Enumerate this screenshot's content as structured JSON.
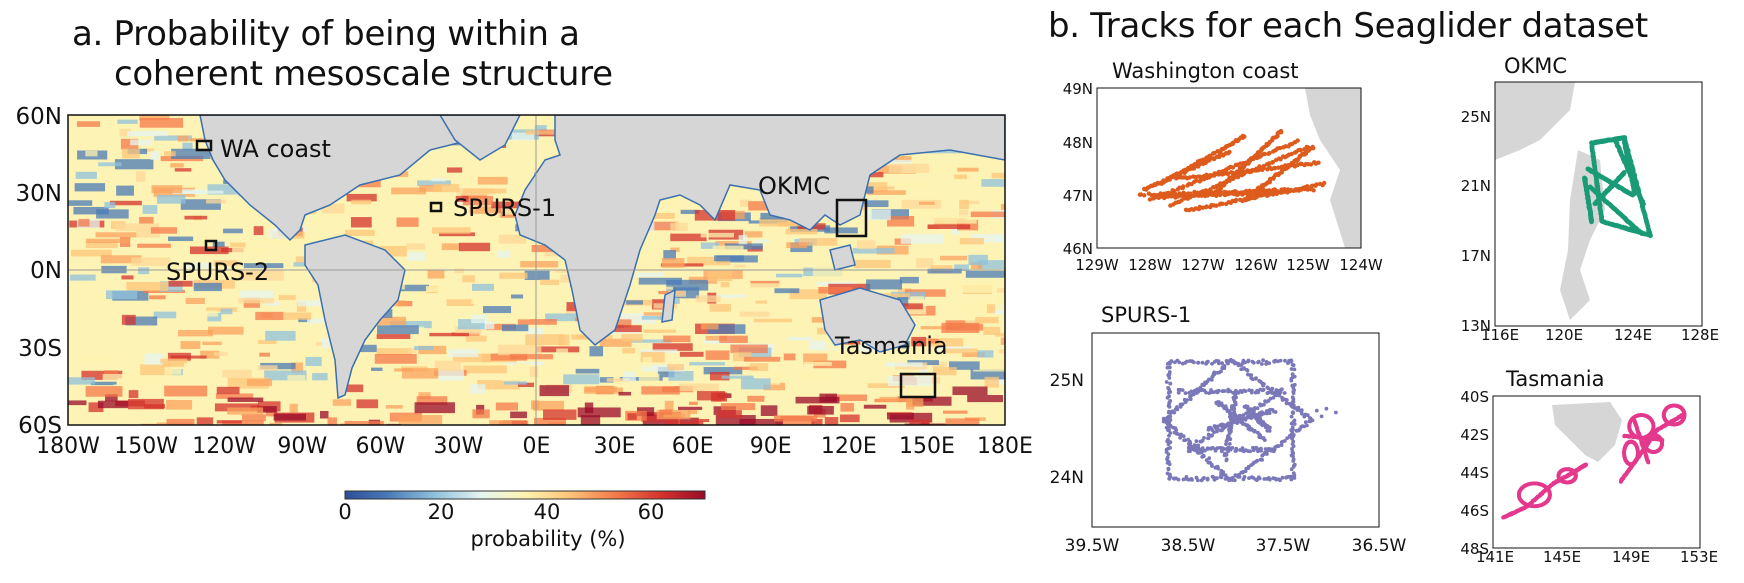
{
  "panel_a": {
    "title": "a. Probability of being within a\n    coherent mesoscale structure",
    "lat_ticks": [
      "60N",
      "30N",
      "0N",
      "30S",
      "60S"
    ],
    "lon_ticks": [
      "180W",
      "150W",
      "120W",
      "90W",
      "60W",
      "30W",
      "0E",
      "30E",
      "60E",
      "90E",
      "120E",
      "150E",
      "180E"
    ],
    "regions": [
      "WA coast",
      "SPURS-1",
      "SPURS-2",
      "OKMC",
      "Tasmania"
    ],
    "colorbar": {
      "ticks": [
        "0",
        "20",
        "40",
        "60"
      ],
      "label": "probability (%)"
    }
  },
  "panel_b": {
    "title": "b. Tracks for each Seaglider dataset"
  },
  "colors": {
    "land": "#d6d6d6",
    "washington": "#dd5b1c",
    "okmc": "#1a9b76",
    "spurs1": "#7a78b8",
    "tasmania": "#e3398c"
  },
  "chart_data": [
    {
      "type": "heatmap",
      "title": "a. Probability of being within a coherent mesoscale structure",
      "xlabel": "",
      "ylabel": "",
      "x_ticks": [
        "180W",
        "150W",
        "120W",
        "90W",
        "60W",
        "30W",
        "0E",
        "30E",
        "60E",
        "90E",
        "120E",
        "150E",
        "180E"
      ],
      "y_ticks": [
        "60N",
        "30N",
        "0N",
        "30S",
        "60S"
      ],
      "colorbar": {
        "label": "probability (%)",
        "range": [
          0,
          70
        ],
        "ticks": [
          0,
          20,
          40,
          60
        ],
        "colormap": "RdYlBu_r"
      },
      "boxes": [
        {
          "name": "WA coast",
          "lon": [
            -126,
            -123
          ],
          "lat": [
            46,
            49
          ]
        },
        {
          "name": "SPURS-1",
          "lon": [
            -39.5,
            -36.5
          ],
          "lat": [
            23.5,
            26
          ]
        },
        {
          "name": "SPURS-2",
          "lon": [
            -126,
            -123
          ],
          "lat": [
            8,
            12
          ]
        },
        {
          "name": "OKMC",
          "lon": [
            116,
            128
          ],
          "lat": [
            13,
            27
          ]
        },
        {
          "name": "Tasmania",
          "lon": [
            141,
            153
          ],
          "lat": [
            -48,
            -40
          ]
        }
      ]
    },
    {
      "type": "scatter",
      "title": "Washington coast",
      "xlim": [
        -129,
        -124
      ],
      "ylim": [
        46,
        49
      ],
      "x_ticks": [
        "129W",
        "128W",
        "127W",
        "126W",
        "125W",
        "124W"
      ],
      "y_ticks": [
        "49N",
        "48N",
        "47N",
        "46N"
      ],
      "series": [
        {
          "color": "#dd5b1c",
          "x_range": [
            -128.2,
            -124.7
          ],
          "y_range": [
            46.6,
            48.2
          ]
        }
      ]
    },
    {
      "type": "scatter",
      "title": "OKMC",
      "xlim": [
        116,
        128
      ],
      "ylim": [
        13,
        27
      ],
      "x_ticks": [
        "116E",
        "120E",
        "124E",
        "128E"
      ],
      "y_ticks": [
        "25N",
        "21N",
        "17N",
        "13N"
      ],
      "series": [
        {
          "color": "#1a9b76",
          "x_range": [
            121,
            125
          ],
          "y_range": [
            17.5,
            24
          ]
        }
      ]
    },
    {
      "type": "scatter",
      "title": "SPURS-1",
      "xlim": [
        -39.5,
        -36.5
      ],
      "ylim": [
        23.5,
        25.5
      ],
      "x_ticks": [
        "39.5W",
        "38.5W",
        "37.5W",
        "36.5W"
      ],
      "y_ticks": [
        "25N",
        "24N"
      ],
      "series": [
        {
          "color": "#7a78b8",
          "x_range": [
            -38.75,
            -37.0
          ],
          "y_range": [
            23.95,
            25.2
          ]
        }
      ]
    },
    {
      "type": "scatter",
      "title": "Tasmania",
      "xlim": [
        141,
        153
      ],
      "ylim": [
        -48,
        -40
      ],
      "x_ticks": [
        "141E",
        "145E",
        "149E",
        "153E"
      ],
      "y_ticks": [
        "40S",
        "42S",
        "44S",
        "46S",
        "48S"
      ],
      "series": [
        {
          "color": "#e3398c",
          "x_range": [
            141.5,
            152.5
          ],
          "y_range": [
            -46.4,
            -40.8
          ]
        }
      ]
    }
  ]
}
